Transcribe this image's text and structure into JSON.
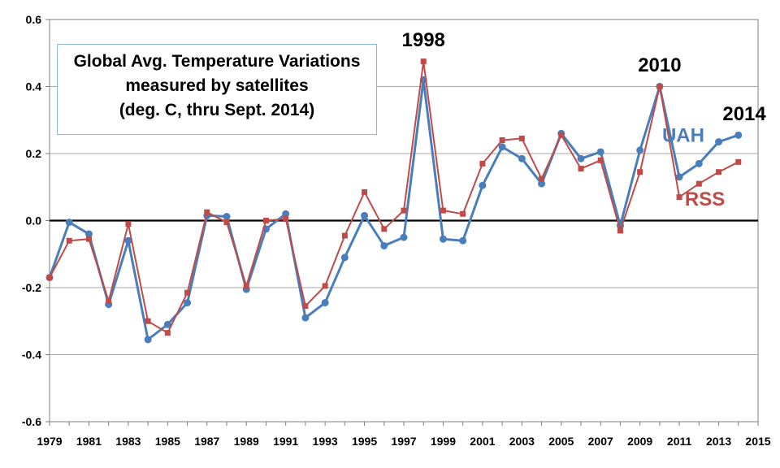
{
  "chart_data": {
    "type": "line",
    "title_lines": [
      "Global Avg. Temperature Variations",
      "measured by satellites",
      "(deg. C, thru Sept. 2014)"
    ],
    "xlabel": "",
    "ylabel": "",
    "xlim": [
      1979,
      2015
    ],
    "ylim": [
      -0.6,
      0.6
    ],
    "x_ticks": [
      "1979",
      "1981",
      "1983",
      "1985",
      "1987",
      "1989",
      "1991",
      "1993",
      "1995",
      "1997",
      "1999",
      "2001",
      "2003",
      "2005",
      "2007",
      "2009",
      "2011",
      "2013",
      "2015"
    ],
    "y_ticks": [
      "0.6",
      "0.4",
      "0.2",
      "0.0",
      "-0.2",
      "-0.4",
      "-0.6"
    ],
    "grid": "horizontal",
    "x": [
      1979,
      1980,
      1981,
      1982,
      1983,
      1984,
      1985,
      1986,
      1987,
      1988,
      1989,
      1990,
      1991,
      1992,
      1993,
      1994,
      1995,
      1996,
      1997,
      1998,
      1999,
      2000,
      2001,
      2002,
      2003,
      2004,
      2005,
      2006,
      2007,
      2008,
      2009,
      2010,
      2011,
      2012,
      2013,
      2014
    ],
    "series": [
      {
        "name": "UAH",
        "color": "#4a7ebb",
        "marker": "circle",
        "values": [
          -0.17,
          -0.005,
          -0.04,
          -0.25,
          -0.06,
          -0.355,
          -0.31,
          -0.245,
          0.015,
          0.012,
          -0.205,
          -0.025,
          0.02,
          -0.29,
          -0.245,
          -0.11,
          0.015,
          -0.075,
          -0.05,
          0.42,
          -0.055,
          -0.06,
          0.105,
          0.22,
          0.185,
          0.11,
          0.26,
          0.185,
          0.205,
          -0.015,
          0.21,
          0.4,
          0.13,
          0.17,
          0.235,
          0.255
        ]
      },
      {
        "name": "RSS",
        "color": "#be4b48",
        "marker": "square",
        "values": [
          -0.17,
          -0.06,
          -0.055,
          -0.24,
          -0.01,
          -0.3,
          -0.335,
          -0.215,
          0.025,
          -0.005,
          -0.195,
          0.0,
          0.005,
          -0.255,
          -0.195,
          -0.045,
          0.085,
          -0.025,
          0.03,
          0.475,
          0.03,
          0.02,
          0.17,
          0.24,
          0.245,
          0.125,
          0.255,
          0.155,
          0.18,
          -0.03,
          0.145,
          0.4,
          0.07,
          0.11,
          0.145,
          0.175
        ]
      }
    ],
    "annotations": [
      {
        "text": "1998",
        "x": 1998,
        "y": 0.52,
        "color": "#000000"
      },
      {
        "text": "2010",
        "x": 2010,
        "y": 0.445,
        "color": "#000000"
      },
      {
        "text": "2014",
        "x": 2014.3,
        "y": 0.3,
        "color": "#000000"
      },
      {
        "text": "UAH",
        "x": 2011.2,
        "y": 0.235,
        "color": "#4a7ebb"
      },
      {
        "text": "RSS",
        "x": 2012.3,
        "y": 0.045,
        "color": "#be4b48"
      }
    ]
  }
}
